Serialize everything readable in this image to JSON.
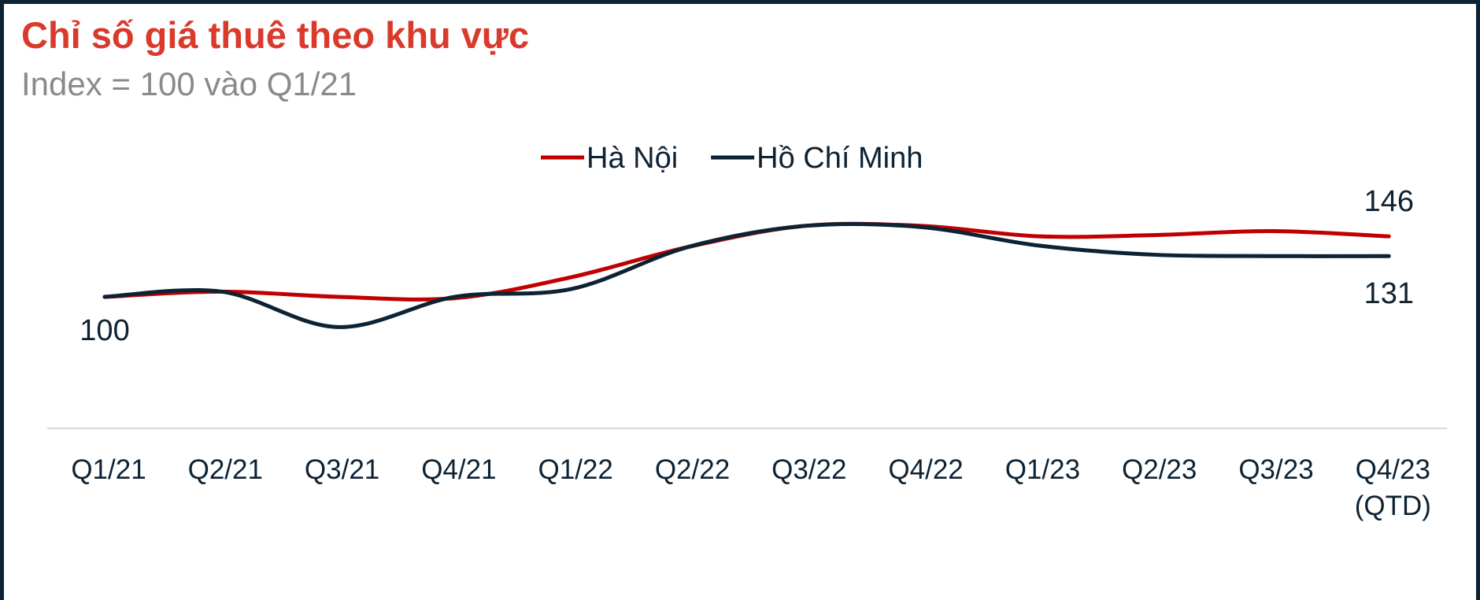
{
  "chart_data": {
    "type": "line",
    "title": "Chỉ số giá thuê theo khu vực",
    "subtitle": "Index = 100 vào Q1/21",
    "categories": [
      "Q1/21",
      "Q2/21",
      "Q3/21",
      "Q4/21",
      "Q1/22",
      "Q2/22",
      "Q3/22",
      "Q4/22",
      "Q1/23",
      "Q2/23",
      "Q3/23",
      "Q4/23\n(QTD)"
    ],
    "series": [
      {
        "name": "Hà Nội",
        "color": "#c00000",
        "values": [
          100,
          104,
          100,
          99,
          115,
          138,
          154,
          154,
          146,
          147,
          150,
          146
        ]
      },
      {
        "name": "Hồ Chí Minh",
        "color": "#0d2233",
        "values": [
          100,
          104,
          77,
          100,
          106,
          138,
          154,
          153,
          139,
          132,
          131,
          131
        ]
      }
    ],
    "ylim": [
      0,
      200
    ],
    "legend": "top"
  }
}
